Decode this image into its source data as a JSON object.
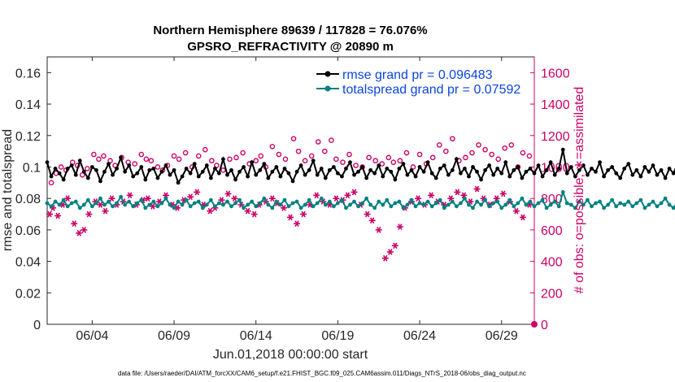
{
  "chart_data": {
    "type": "line",
    "title_line1": "Northern Hemisphere 89639 / 117828 = 76.076%",
    "title_line2": "GPSRO_REFRACTIVITY @ 20890 m",
    "xlabel": "Jun.01,2018 00:00:00 start",
    "ylabel_left": "rmse and totalspread",
    "ylabel_right": "# of obs: o=possible; ∗=assimilated",
    "footer": "data file: /Users/raeder/DAI/ATM_forcXX/CAM6_setup/f.e21.FHIST_BGC.f09_025.CAM6assim.011/Diags_NTrS_2018-06/obs_diag_output.nc",
    "x_tick_labels": [
      "06/04",
      "06/09",
      "06/14",
      "06/19",
      "06/24",
      "06/29"
    ],
    "x_tick_days": [
      4,
      9,
      14,
      19,
      24,
      29
    ],
    "xlim": [
      1.25,
      31.0
    ],
    "ylim_left": [
      0,
      0.17
    ],
    "y_ticks_left": [
      0,
      0.02,
      0.04,
      0.06,
      0.08,
      0.1,
      0.12,
      0.14,
      0.16
    ],
    "y_tick_labels_left": [
      "0",
      "0.02",
      "0.04",
      "0.06",
      "0.08",
      "0.1",
      "0.12",
      "0.14",
      "0.16"
    ],
    "ylim_right": [
      0,
      1700
    ],
    "y_ticks_right": [
      0,
      200,
      400,
      600,
      800,
      1000,
      1200,
      1400,
      1600
    ],
    "y_tick_labels_right": [
      "0",
      "200",
      "400",
      "600",
      "800",
      "1000",
      "1200",
      "1400",
      "1600"
    ],
    "legend_position": "top-right",
    "grid": false,
    "colors": {
      "rmse": "#000000",
      "spread": "#008080",
      "obs": "#cc0066",
      "legend_text": "#0b45e0"
    },
    "series": [
      {
        "name": "rmse grand pr = 0.096483",
        "axis": "left",
        "start_day": 1.25,
        "step_days": 0.25,
        "values": [
          0.103,
          0.094,
          0.099,
          0.096,
          0.092,
          0.099,
          0.101,
          0.095,
          0.104,
          0.097,
          0.093,
          0.1,
          0.098,
          0.091,
          0.097,
          0.102,
          0.095,
          0.099,
          0.106,
          0.097,
          0.101,
          0.094,
          0.096,
          0.1,
          0.092,
          0.098,
          0.099,
          0.093,
          0.097,
          0.101,
          0.095,
          0.098,
          0.09,
          0.094,
          0.099,
          0.096,
          0.102,
          0.094,
          0.097,
          0.101,
          0.093,
          0.099,
          0.096,
          0.105,
          0.095,
          0.098,
          0.092,
          0.097,
          0.1,
          0.094,
          0.103,
          0.095,
          0.098,
          0.102,
          0.093,
          0.097,
          0.1,
          0.094,
          0.099,
          0.096,
          0.091,
          0.097,
          0.101,
          0.095,
          0.098,
          0.104,
          0.095,
          0.099,
          0.093,
          0.098,
          0.1,
          0.096,
          0.094,
          0.099,
          0.103,
          0.095,
          0.097,
          0.1,
          0.093,
          0.098,
          0.096,
          0.101,
          0.094,
          0.099,
          0.097,
          0.092,
          0.099,
          0.102,
          0.095,
          0.098,
          0.094,
          0.1,
          0.097,
          0.103,
          0.096,
          0.093,
          0.099,
          0.101,
          0.095,
          0.098,
          0.105,
          0.096,
          0.099,
          0.094,
          0.1,
          0.097,
          0.092,
          0.098,
          0.101,
          0.095,
          0.099,
          0.096,
          0.103,
          0.094,
          0.098,
          0.1,
          0.093,
          0.097,
          0.099,
          0.096,
          0.101,
          0.094,
          0.098,
          0.103,
          0.095,
          0.099,
          0.111,
          0.096,
          0.1,
          0.094,
          0.098,
          0.101,
          0.095,
          0.099,
          0.097,
          0.103,
          0.094,
          0.098,
          0.1,
          0.096,
          0.093,
          0.099,
          0.102,
          0.095,
          0.098,
          0.094,
          0.1,
          0.097,
          0.101,
          0.095,
          0.098,
          0.093,
          0.099,
          0.096,
          0.102,
          0.095,
          0.097,
          0.1,
          0.094,
          0.098,
          0.101,
          0.096,
          0.093,
          0.099,
          0.097,
          0.102,
          0.095,
          0.098,
          0.094,
          0.1,
          0.096,
          0.099,
          0.103,
          0.095,
          0.098,
          0.092,
          0.097,
          0.101,
          0.095,
          0.099,
          0.096,
          0.098,
          0.094,
          0.1,
          0.097,
          0.095,
          0.099,
          0.096
        ]
      },
      {
        "name": "totalspread grand pr = 0.07592",
        "axis": "left",
        "start_day": 1.25,
        "step_days": 0.25,
        "values": [
          0.077,
          0.075,
          0.078,
          0.076,
          0.079,
          0.075,
          0.077,
          0.078,
          0.074,
          0.076,
          0.079,
          0.075,
          0.077,
          0.08,
          0.076,
          0.078,
          0.075,
          0.077,
          0.081,
          0.076,
          0.078,
          0.075,
          0.077,
          0.079,
          0.074,
          0.076,
          0.078,
          0.075,
          0.077,
          0.08,
          0.076,
          0.074,
          0.078,
          0.076,
          0.079,
          0.075,
          0.077,
          0.078,
          0.074,
          0.076,
          0.079,
          0.075,
          0.077,
          0.076,
          0.078,
          0.075,
          0.077,
          0.079,
          0.074,
          0.076,
          0.078,
          0.075,
          0.077,
          0.08,
          0.076,
          0.074,
          0.078,
          0.076,
          0.079,
          0.075,
          0.077,
          0.078,
          0.074,
          0.076,
          0.079,
          0.075,
          0.077,
          0.08,
          0.076,
          0.078,
          0.075,
          0.077,
          0.079,
          0.074,
          0.076,
          0.078,
          0.075,
          0.077,
          0.08,
          0.076,
          0.074,
          0.078,
          0.076,
          0.079,
          0.075,
          0.077,
          0.078,
          0.074,
          0.076,
          0.079,
          0.075,
          0.077,
          0.076,
          0.078,
          0.075,
          0.077,
          0.079,
          0.074,
          0.076,
          0.078,
          0.075,
          0.077,
          0.08,
          0.076,
          0.074,
          0.078,
          0.076,
          0.079,
          0.075,
          0.077,
          0.078,
          0.074,
          0.076,
          0.079,
          0.075,
          0.077,
          0.08,
          0.076,
          0.078,
          0.075,
          0.077,
          0.079,
          0.074,
          0.076,
          0.078,
          0.075,
          0.084,
          0.077,
          0.076,
          0.074,
          0.078,
          0.076,
          0.079,
          0.075,
          0.077,
          0.078,
          0.074,
          0.076,
          0.079,
          0.075,
          0.077,
          0.076,
          0.078,
          0.075,
          0.077,
          0.079,
          0.074,
          0.076,
          0.078,
          0.075,
          0.077,
          0.08,
          0.076,
          0.074,
          0.078,
          0.076,
          0.079,
          0.075,
          0.077,
          0.078,
          0.074,
          0.076,
          0.079,
          0.075,
          0.077,
          0.08,
          0.076,
          0.078,
          0.075,
          0.077,
          0.079,
          0.074,
          0.076,
          0.078,
          0.075,
          0.077,
          0.076,
          0.074,
          0.078,
          0.076,
          0.079,
          0.075,
          0.077,
          0.078,
          0.074,
          0.076,
          0.079,
          0.075,
          0.077,
          0.076,
          0.078,
          0.075,
          0.077
        ]
      },
      {
        "name": "# obs possible",
        "axis": "right",
        "marker": "circle",
        "x": [
          1.5,
          1.8,
          2.1,
          2.4,
          2.8,
          3.1,
          3.4,
          3.7,
          4.1,
          4.4,
          4.7,
          5.1,
          5.4,
          5.8,
          6.2,
          6.6,
          7.0,
          7.3,
          7.6,
          8.0,
          8.3,
          8.6,
          9.0,
          9.3,
          9.7,
          10.1,
          10.5,
          10.9,
          11.3,
          11.6,
          12.0,
          12.4,
          12.8,
          13.2,
          13.6,
          14.0,
          14.3,
          14.6,
          15.0,
          15.4,
          15.8,
          16.3,
          16.6,
          17.0,
          17.4,
          17.8,
          18.2,
          18.6,
          18.9,
          19.3,
          19.7,
          20.1,
          20.5,
          20.9,
          21.3,
          21.7,
          22.1,
          22.4,
          22.8,
          23.2,
          23.6,
          24.0,
          24.4,
          24.8,
          25.2,
          25.6,
          26.0,
          26.4,
          26.8,
          27.2,
          27.6,
          28.0,
          28.4,
          28.8,
          29.2,
          29.6,
          30.0,
          30.3,
          30.7
        ],
        "values": [
          900,
          960,
          1000,
          980,
          1030,
          1010,
          950,
          990,
          1080,
          1050,
          1070,
          1040,
          1010,
          1060,
          1030,
          1020,
          1080,
          1050,
          1040,
          1000,
          980,
          1010,
          1070,
          1050,
          1090,
          1000,
          1070,
          1110,
          1040,
          1010,
          980,
          1050,
          1060,
          1090,
          1020,
          1040,
          1070,
          1000,
          1130,
          1080,
          1050,
          1180,
          1100,
          1040,
          1070,
          1160,
          1100,
          1170,
          1050,
          1030,
          1080,
          1010,
          1000,
          1060,
          1040,
          1020,
          1060,
          1030,
          1040,
          1090,
          1000,
          1080,
          1020,
          1060,
          1140,
          1100,
          1180,
          1040,
          1060,
          1090,
          1140,
          1110,
          1080,
          1050,
          1120,
          1140,
          1000,
          1090,
          1070
        ]
      },
      {
        "name": "# obs assimilated",
        "axis": "right",
        "marker": "asterisk",
        "x": [
          1.4,
          1.6,
          1.9,
          2.2,
          2.5,
          2.9,
          3.2,
          3.5,
          3.8,
          4.2,
          4.5,
          4.8,
          5.2,
          5.5,
          5.9,
          6.3,
          6.7,
          7.1,
          7.4,
          7.7,
          8.1,
          8.5,
          8.9,
          9.2,
          9.6,
          10.0,
          10.4,
          10.8,
          11.2,
          11.5,
          11.9,
          12.3,
          12.7,
          13.1,
          13.5,
          13.9,
          14.2,
          14.6,
          15.0,
          15.3,
          15.7,
          16.1,
          16.5,
          16.9,
          17.3,
          17.7,
          18.1,
          18.5,
          18.9,
          19.3,
          19.6,
          20.0,
          20.4,
          20.8,
          21.1,
          21.5,
          21.9,
          22.2,
          22.5,
          22.8,
          23.1,
          23.5,
          23.9,
          24.3,
          24.7,
          25.1,
          25.5,
          25.9,
          26.3,
          26.7,
          27.1,
          27.5,
          27.9,
          28.3,
          28.7,
          29.1,
          29.5,
          29.9,
          30.3,
          30.7
        ],
        "values": [
          700,
          740,
          690,
          760,
          800,
          640,
          580,
          600,
          700,
          780,
          760,
          720,
          800,
          760,
          780,
          820,
          760,
          790,
          800,
          750,
          780,
          820,
          760,
          740,
          790,
          810,
          840,
          760,
          720,
          740,
          790,
          830,
          800,
          760,
          720,
          700,
          760,
          780,
          800,
          770,
          740,
          680,
          640,
          700,
          760,
          820,
          780,
          760,
          800,
          790,
          820,
          840,
          760,
          700,
          660,
          600,
          420,
          460,
          500,
          620,
          740,
          780,
          800,
          760,
          820,
          780,
          760,
          800,
          840,
          820,
          780,
          860,
          800,
          760,
          800,
          830,
          780,
          720,
          680,
          760
        ]
      }
    ]
  }
}
